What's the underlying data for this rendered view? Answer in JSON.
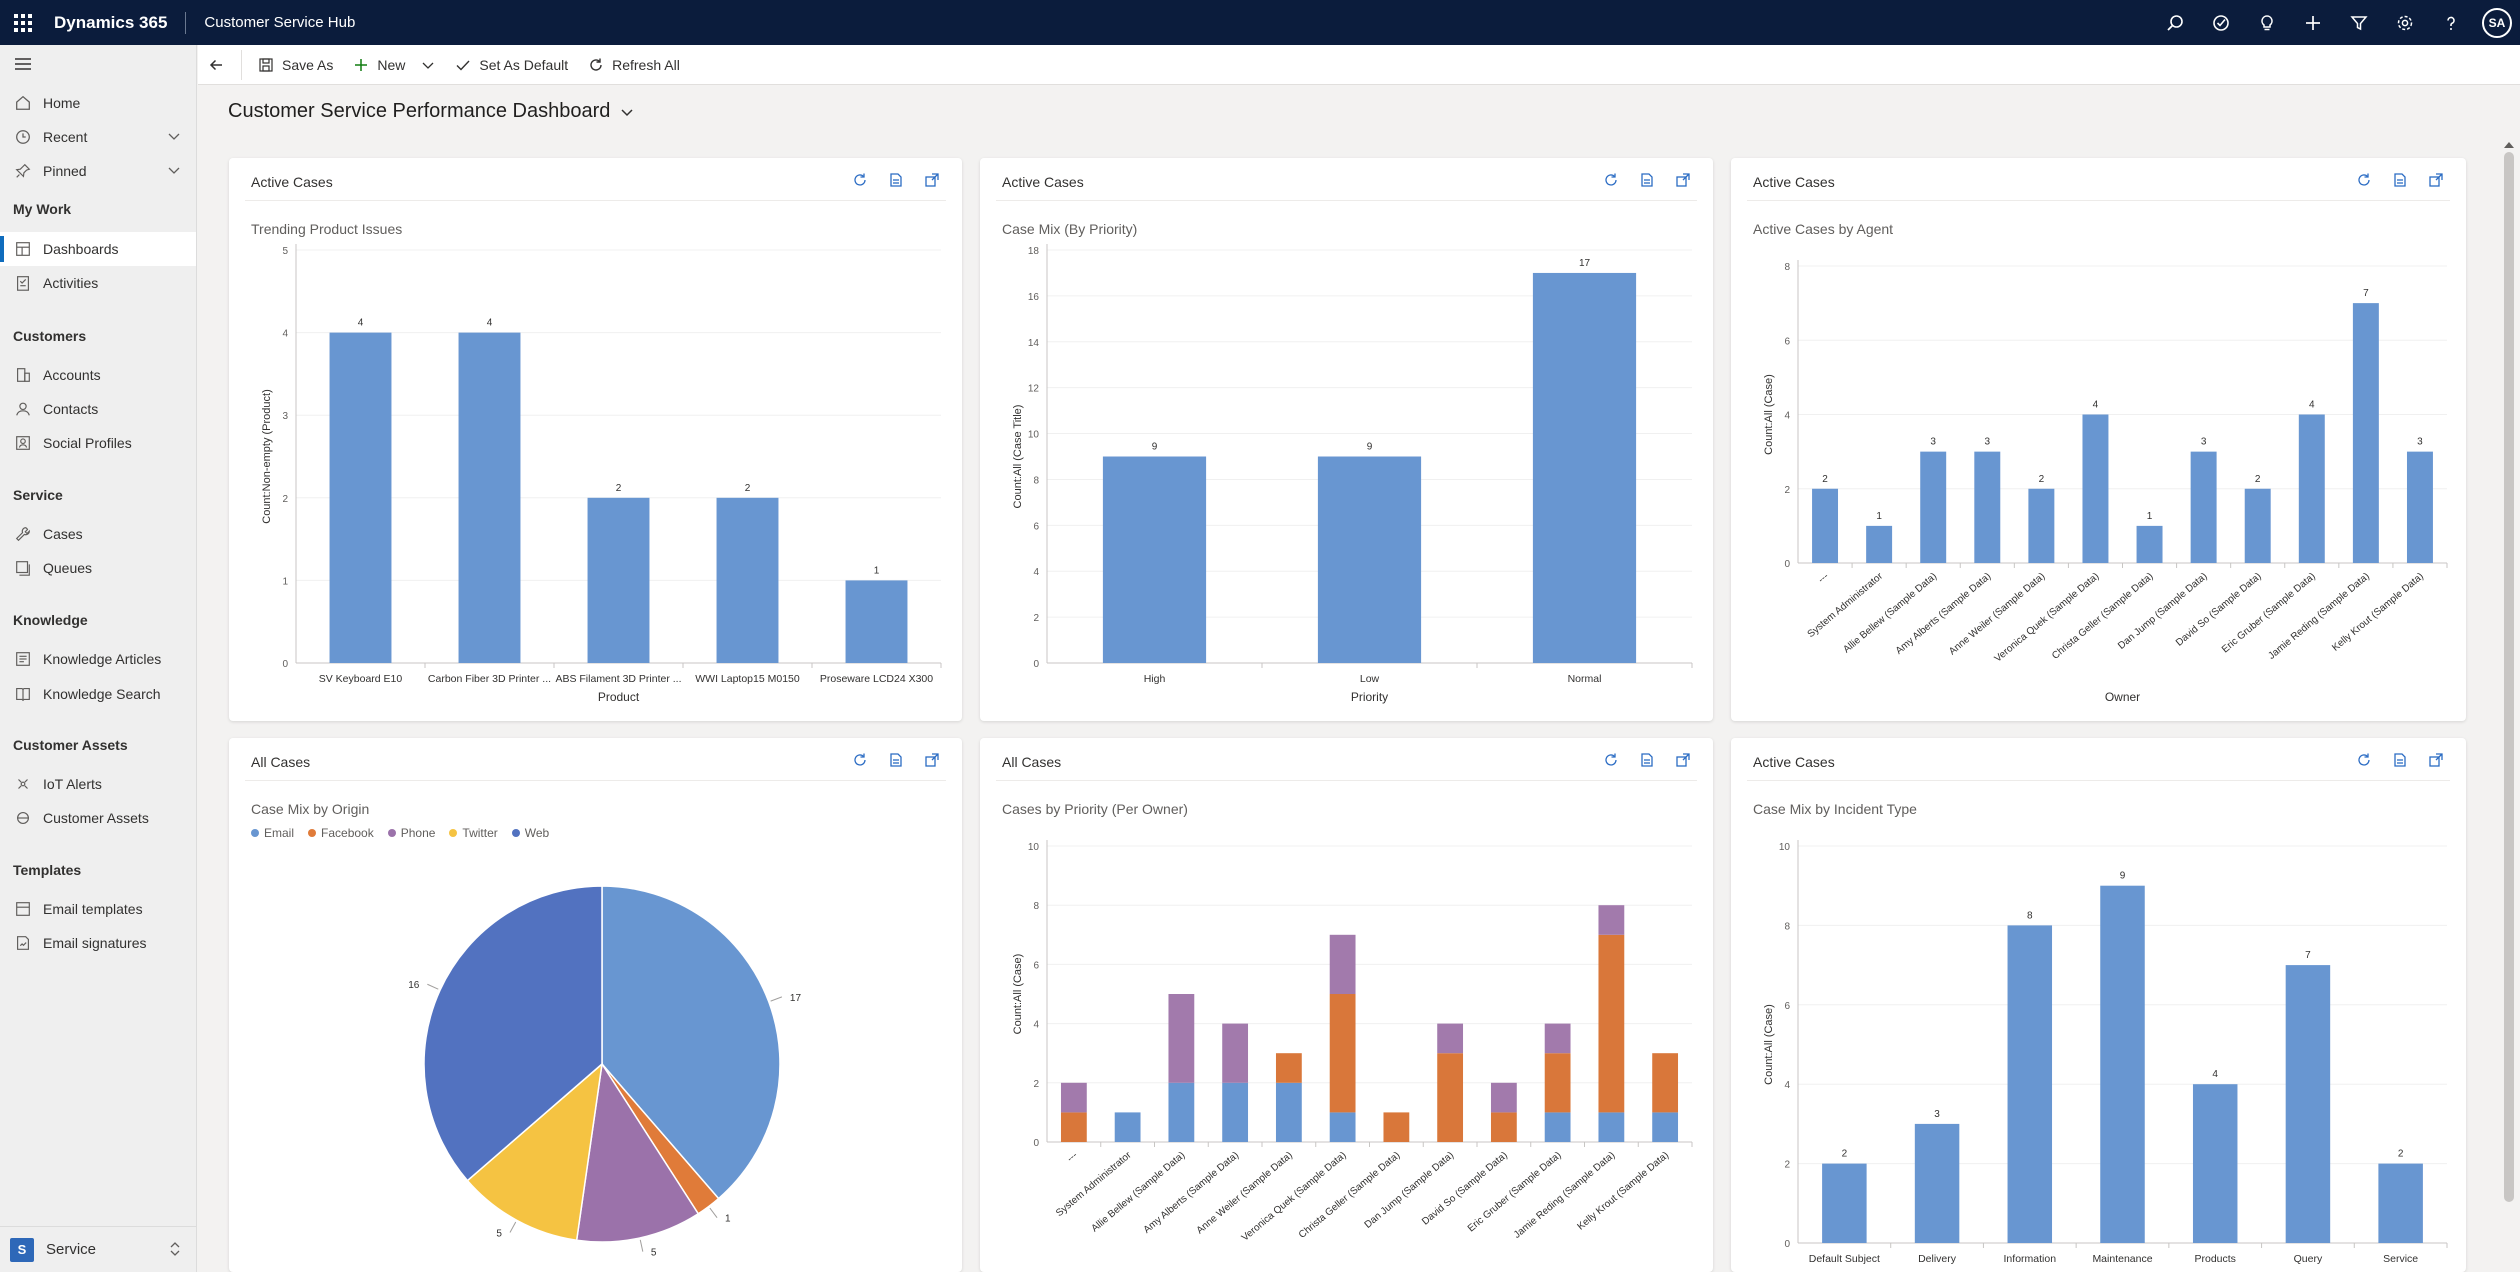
{
  "topbar": {
    "brand": "Dynamics 365",
    "app": "Customer Service Hub",
    "avatar": "SA",
    "icons": [
      "search-icon",
      "assistant-icon",
      "lightbulb-icon",
      "plus-icon",
      "filter-icon",
      "settings-icon",
      "help-icon"
    ]
  },
  "command_bar": {
    "save_as": "Save As",
    "new": "New",
    "set_as_default": "Set As Default",
    "refresh_all": "Refresh All"
  },
  "dashboard": {
    "title": "Customer Service Performance Dashboard"
  },
  "sidebar": {
    "items_top": [
      {
        "label": "Home",
        "icon": "home-icon"
      },
      {
        "label": "Recent",
        "icon": "clock-icon"
      },
      {
        "label": "Pinned",
        "icon": "pin-icon"
      }
    ],
    "groups": [
      {
        "title": "My Work",
        "items": [
          {
            "label": "Dashboards",
            "icon": "dashboard-icon",
            "active": true
          },
          {
            "label": "Activities",
            "icon": "activities-icon"
          }
        ]
      },
      {
        "title": "Customers",
        "items": [
          {
            "label": "Accounts",
            "icon": "accounts-icon"
          },
          {
            "label": "Contacts",
            "icon": "contacts-icon"
          },
          {
            "label": "Social Profiles",
            "icon": "social-profiles-icon"
          }
        ]
      },
      {
        "title": "Service",
        "items": [
          {
            "label": "Cases",
            "icon": "wrench-icon"
          },
          {
            "label": "Queues",
            "icon": "queues-icon"
          }
        ]
      },
      {
        "title": "Knowledge",
        "items": [
          {
            "label": "Knowledge Articles",
            "icon": "article-icon"
          },
          {
            "label": "Knowledge Search",
            "icon": "book-icon"
          }
        ]
      },
      {
        "title": "Customer Assets",
        "items": [
          {
            "label": "IoT Alerts",
            "icon": "iot-icon"
          },
          {
            "label": "Customer Assets",
            "icon": "assets-icon"
          }
        ]
      },
      {
        "title": "Templates",
        "items": [
          {
            "label": "Email templates",
            "icon": "email-template-icon"
          },
          {
            "label": "Email signatures",
            "icon": "signature-icon"
          }
        ]
      }
    ],
    "area": {
      "letter": "S",
      "label": "Service"
    }
  },
  "panels": [
    {
      "title": "Active Cases",
      "subtitle": "Trending Product Issues"
    },
    {
      "title": "Active Cases",
      "subtitle": "Case Mix (By Priority)"
    },
    {
      "title": "Active Cases",
      "subtitle": "Active Cases by Agent"
    },
    {
      "title": "All Cases",
      "subtitle": "Case Mix by Origin"
    },
    {
      "title": "All Cases",
      "subtitle": "Cases by Priority (Per Owner)"
    },
    {
      "title": "Active Cases",
      "subtitle": "Case Mix by Incident Type"
    }
  ],
  "chart_data": [
    {
      "type": "bar",
      "title": "Trending Product Issues",
      "categories": [
        "SV Keyboard E10",
        "Carbon Fiber 3D Printer ...",
        "ABS Filament 3D Printer ...",
        "WWI Laptop15 M0150",
        "Proseware LCD24 X300"
      ],
      "values": [
        4,
        4,
        2,
        2,
        1
      ],
      "xlabel": "Product",
      "ylabel": "Count:Non-empty (Product)",
      "ylim": [
        0,
        5
      ],
      "yticks": [
        0,
        1,
        2,
        3,
        4,
        5
      ],
      "color": "#6896d1"
    },
    {
      "type": "bar",
      "title": "Case Mix (By Priority)",
      "categories": [
        "High",
        "Low",
        "Normal"
      ],
      "values": [
        9,
        9,
        17
      ],
      "xlabel": "Priority",
      "ylabel": "Count:All (Case Title)",
      "ylim": [
        0,
        18
      ],
      "yticks": [
        0,
        2,
        4,
        6,
        8,
        10,
        12,
        14,
        16,
        18
      ],
      "color": "#6896d1"
    },
    {
      "type": "bar",
      "title": "Active Cases by Agent",
      "categories": [
        "---",
        "System Administrator",
        "Allie Bellew (Sample Data)",
        "Amy Alberts (Sample Data)",
        "Anne Weiler (Sample Data)",
        "Veronica Quek (Sample Data)",
        "Christa Geller (Sample Data)",
        "Dan Jump (Sample Data)",
        "David So (Sample Data)",
        "Eric Gruber (Sample Data)",
        "Jamie Reding (Sample Data)",
        "Kelly Krout (Sample Data)"
      ],
      "values": [
        2,
        1,
        3,
        3,
        2,
        4,
        1,
        3,
        2,
        4,
        7,
        3
      ],
      "xlabel": "Owner",
      "ylabel": "Count:All (Case)",
      "ylim": [
        0,
        8
      ],
      "yticks": [
        0,
        2,
        4,
        6,
        8
      ],
      "color": "#6896d1"
    },
    {
      "type": "pie",
      "title": "Case Mix by Origin",
      "legend": [
        "Email",
        "Facebook",
        "Phone",
        "Twitter",
        "Web"
      ],
      "values": [
        17,
        1,
        5,
        5,
        16
      ],
      "colors": [
        "#6896d1",
        "#e07b39",
        "#9b72aa",
        "#f5c342",
        "#5272c0"
      ],
      "labels": [
        "17",
        "1",
        "5",
        "5",
        "16"
      ]
    },
    {
      "type": "bar",
      "stacked": true,
      "title": "Cases by Priority (Per Owner)",
      "categories": [
        "---",
        "System Administrator",
        "Allie Bellew (Sample Data)",
        "Amy Alberts (Sample Data)",
        "Anne Weiler (Sample Data)",
        "Veronica Quek (Sample Data)",
        "Christa Geller (Sample Data)",
        "Dan Jump (Sample Data)",
        "David So (Sample Data)",
        "Eric Gruber (Sample Data)",
        "Jamie Reding (Sample Data)",
        "Kelly Krout (Sample Data)"
      ],
      "series": [
        {
          "values": [
            0,
            1,
            2,
            2,
            2,
            1,
            0,
            0,
            0,
            1,
            1,
            1
          ],
          "color": "#6896d1"
        },
        {
          "values": [
            1,
            0,
            0,
            0,
            1,
            4,
            1,
            3,
            1,
            2,
            6,
            2
          ],
          "color": "#d9773a"
        },
        {
          "values": [
            1,
            0,
            3,
            2,
            0,
            2,
            0,
            1,
            1,
            1,
            1,
            0
          ],
          "color": "#a27aac"
        }
      ],
      "ylabel": "Count:All (Case)",
      "ylim": [
        0,
        10
      ],
      "yticks": [
        0,
        2,
        4,
        6,
        8,
        10
      ]
    },
    {
      "type": "bar",
      "title": "Case Mix by Incident Type",
      "categories": [
        "Default Subject",
        "Delivery",
        "Information",
        "Maintenance",
        "Products",
        "Query",
        "Service"
      ],
      "values": [
        2,
        3,
        8,
        9,
        4,
        7,
        2
      ],
      "ylabel": "Count:All (Case)",
      "ylim": [
        0,
        10
      ],
      "yticks": [
        0,
        2,
        4,
        6,
        8,
        10
      ],
      "color": "#6896d1"
    }
  ]
}
